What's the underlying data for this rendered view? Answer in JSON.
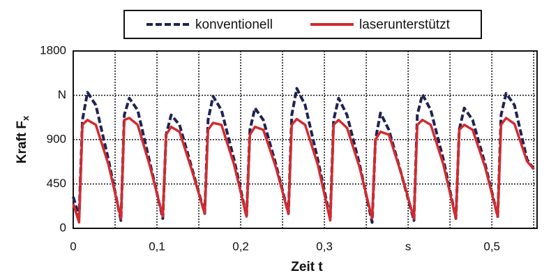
{
  "chart_data": {
    "type": "line",
    "xlabel": "Zeit t",
    "ylabel": "Kraft F",
    "ylabel_subscript": "x",
    "x": [
      0,
      0.007,
      0.011,
      0.017,
      0.027,
      0.042,
      0.057,
      0.061,
      0.067,
      0.077,
      0.092,
      0.107,
      0.111,
      0.117,
      0.127,
      0.142,
      0.157,
      0.161,
      0.167,
      0.177,
      0.192,
      0.207,
      0.211,
      0.217,
      0.227,
      0.242,
      0.257,
      0.261,
      0.267,
      0.277,
      0.292,
      0.307,
      0.311,
      0.317,
      0.327,
      0.342,
      0.357,
      0.361,
      0.367,
      0.377,
      0.392,
      0.407,
      0.411,
      0.417,
      0.427,
      0.442,
      0.457,
      0.461,
      0.467,
      0.477,
      0.492,
      0.507,
      0.511,
      0.517,
      0.527,
      0.542,
      0.55
    ],
    "series": [
      {
        "name": "konventionell",
        "color": "#1f2352",
        "dashed": true,
        "values": [
          320,
          120,
          1100,
          1380,
          1250,
          700,
          80,
          1150,
          1320,
          1200,
          650,
          100,
          950,
          1150,
          1050,
          600,
          150,
          1100,
          1340,
          1200,
          700,
          120,
          1000,
          1220,
          1100,
          650,
          150,
          1150,
          1420,
          1250,
          700,
          100,
          1100,
          1320,
          1150,
          650,
          60,
          900,
          1170,
          1000,
          550,
          80,
          1150,
          1360,
          1200,
          700,
          100,
          1000,
          1220,
          1100,
          650,
          120,
          1150,
          1370,
          1250,
          700,
          600
        ]
      },
      {
        "name": "laserunterstützt",
        "color": "#d42a2f",
        "dashed": false,
        "values": [
          250,
          60,
          1050,
          1100,
          1050,
          650,
          100,
          1100,
          1120,
          1050,
          620,
          120,
          950,
          1030,
          980,
          580,
          150,
          1000,
          1070,
          1050,
          650,
          120,
          950,
          1030,
          1000,
          620,
          150,
          1050,
          1110,
          1050,
          650,
          80,
          1050,
          1100,
          1020,
          620,
          100,
          900,
          980,
          950,
          550,
          100,
          1050,
          1100,
          1050,
          650,
          100,
          1000,
          1050,
          1000,
          620,
          120,
          1050,
          1120,
          1060,
          680,
          600
        ]
      }
    ],
    "xlim": [
      0,
      0.554
    ],
    "xticks": [
      0,
      {
        "value": 0.1,
        "label": "0,1"
      },
      {
        "value": 0.2,
        "label": "0,2"
      },
      {
        "value": 0.3,
        "label": "0,3"
      },
      {
        "value": 0.4,
        "label": "s"
      },
      {
        "value": 0.5,
        "label": "0,5"
      }
    ],
    "ylim": [
      0,
      1800
    ],
    "yticks": [
      0,
      450,
      900,
      {
        "value": 1350,
        "label": "N"
      },
      1800
    ],
    "grid": true
  }
}
